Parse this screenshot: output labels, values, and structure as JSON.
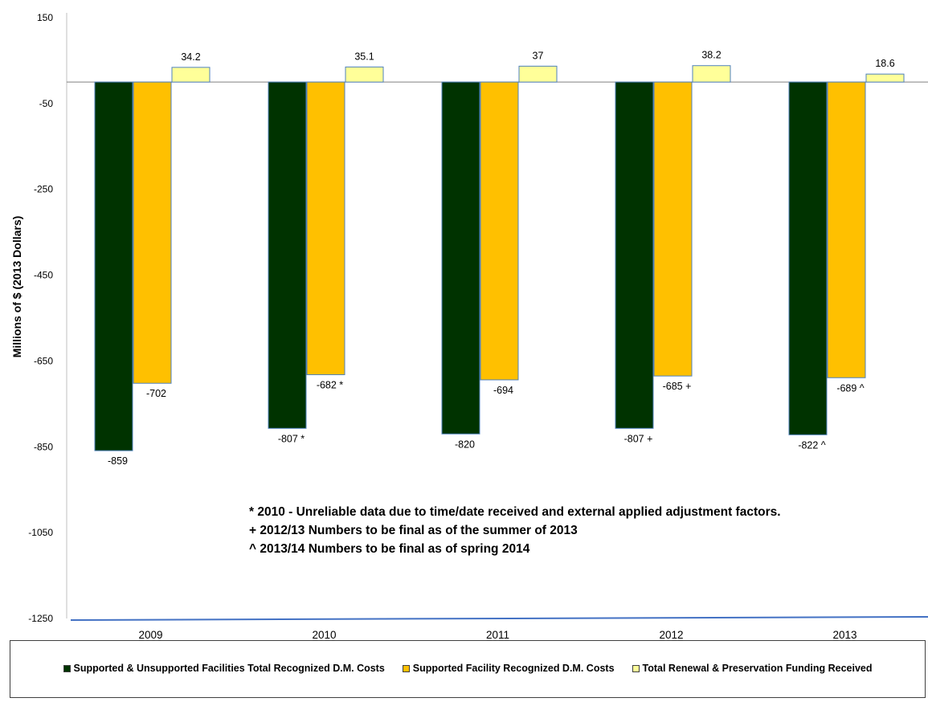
{
  "chart_data": {
    "type": "bar",
    "title": "",
    "xlabel": "",
    "ylabel": "Millions of $ (2013 Dollars)",
    "ylim": [
      -1250,
      150
    ],
    "yticks": [
      "150",
      "-50",
      "-250",
      "-450",
      "-650",
      "-850",
      "-1050",
      "-1250"
    ],
    "ytick_values": [
      150,
      -50,
      -250,
      -450,
      -650,
      -850,
      -1050,
      -1250
    ],
    "categories": [
      "2009",
      "2010",
      "2011",
      "2012",
      "2013"
    ],
    "series": [
      {
        "name": "Supported & Unsupported Facilities Total Recognized D.M. Costs",
        "color": "#003300",
        "values": [
          -859,
          -807,
          -820,
          -807,
          -822
        ],
        "labels": [
          "-859",
          "-807 *",
          "-820",
          "-807 +",
          "-822 ^"
        ]
      },
      {
        "name": "Supported Facility Recognized D.M. Costs",
        "color": "#ffc000",
        "values": [
          -702,
          -682,
          -694,
          -685,
          -689
        ],
        "labels": [
          "-702",
          "-682 *",
          "-694",
          "-685 +",
          "-689 ^"
        ]
      },
      {
        "name": "Total Renewal & Preservation Funding Received",
        "color": "#ffff99",
        "values": [
          34.2,
          35.1,
          37,
          38.2,
          18.6
        ],
        "labels": [
          "34.2",
          "35.1",
          "37",
          "38.2",
          "18.6"
        ]
      }
    ],
    "notes": [
      "* 2010 - Unreliable data due to time/date received and external applied adjustment factors.",
      "+ 2012/13 Numbers to be final as of the summer of 2013",
      "^ 2013/14 Numbers to be final as of spring 2014"
    ],
    "legend_position": "bottom",
    "grid": false,
    "axis_line_color": "#4472c4"
  }
}
